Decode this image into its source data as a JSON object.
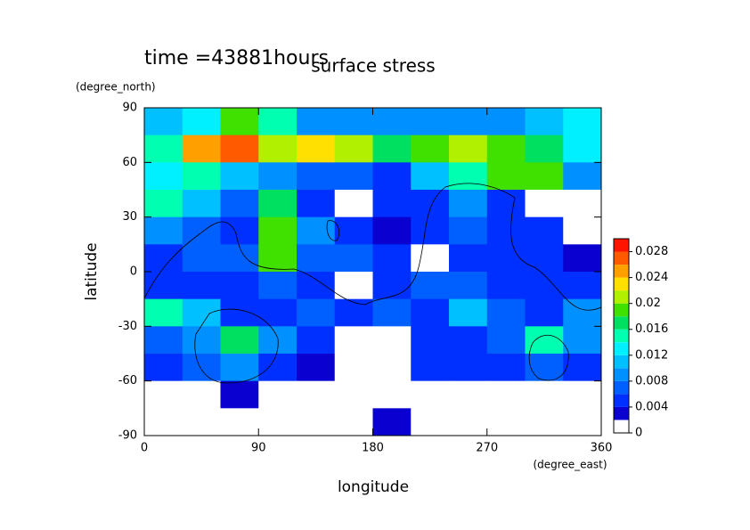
{
  "chart_data": {
    "type": "contour",
    "time_label": "time =43881hours",
    "title": "surface stress",
    "y_units": "(degree_north)",
    "y_label": "latitude",
    "x_label": "longitude",
    "x_units": "(degree_east)",
    "xlim": [
      0,
      360
    ],
    "ylim": [
      -90,
      90
    ],
    "xticks": [
      0,
      90,
      180,
      270,
      360
    ],
    "yticks": [
      -90,
      -60,
      -30,
      0,
      30,
      60,
      90
    ],
    "levels": [
      0,
      0.002,
      0.004,
      0.006,
      0.008,
      0.01,
      0.012,
      0.014,
      0.016,
      0.018,
      0.02,
      0.022,
      0.024,
      0.026,
      0.028,
      0.03
    ],
    "colors": [
      "#ffffff",
      "#0a00d0",
      "#0030ff",
      "#0060ff",
      "#0090ff",
      "#00c0ff",
      "#00f0ff",
      "#00ffb0",
      "#00e060",
      "#40e000",
      "#b0f000",
      "#ffe000",
      "#ffa000",
      "#ff5a00",
      "#ff1400"
    ],
    "colorbar_ticks": [
      0,
      0.004,
      0.008,
      0.012,
      0.016,
      0.02,
      0.024,
      0.028
    ],
    "values": [
      [
        0.01,
        0.012,
        0.018,
        0.014,
        0.008,
        0.008,
        0.008,
        0.008,
        0.008,
        0.008,
        0.01,
        0.012
      ],
      [
        0.014,
        0.024,
        0.026,
        0.02,
        0.022,
        0.02,
        0.016,
        0.018,
        0.02,
        0.018,
        0.016,
        0.012
      ],
      [
        0.012,
        0.014,
        0.01,
        0.008,
        0.006,
        0.006,
        0.004,
        0.01,
        0.014,
        0.018,
        0.018,
        0.008
      ],
      [
        0.014,
        0.01,
        0.006,
        0.016,
        0.004,
        0,
        0.004,
        0.004,
        0.008,
        0.004,
        0,
        0
      ],
      [
        0.008,
        0.006,
        0.004,
        0.018,
        0.008,
        0.004,
        0.002,
        0.004,
        0.006,
        0.004,
        0.004,
        0
      ],
      [
        0.004,
        0.006,
        0.006,
        0.018,
        0.006,
        0.006,
        0.004,
        0,
        0.004,
        0.004,
        0.004,
        0.002
      ],
      [
        0.004,
        0.004,
        0.004,
        0.006,
        0.004,
        0,
        0.004,
        0.006,
        0.006,
        0.004,
        0.004,
        0.004
      ],
      [
        0.014,
        0.01,
        0.004,
        0.004,
        0.006,
        0.004,
        0.006,
        0.004,
        0.01,
        0.006,
        0.004,
        0.008
      ],
      [
        0.006,
        0.008,
        0.016,
        0.008,
        0.004,
        0,
        0,
        0.004,
        0.004,
        0.006,
        0.014,
        0.008
      ],
      [
        0.004,
        0.006,
        0.008,
        0.004,
        0.002,
        0,
        0,
        0.004,
        0.004,
        0.004,
        0.006,
        0.004
      ],
      [
        0,
        0,
        0.002,
        0,
        0,
        0,
        0,
        0,
        0,
        0,
        0,
        0
      ],
      [
        0,
        0,
        0,
        0,
        0,
        0,
        0.002,
        0,
        0,
        0,
        0,
        0
      ]
    ]
  }
}
